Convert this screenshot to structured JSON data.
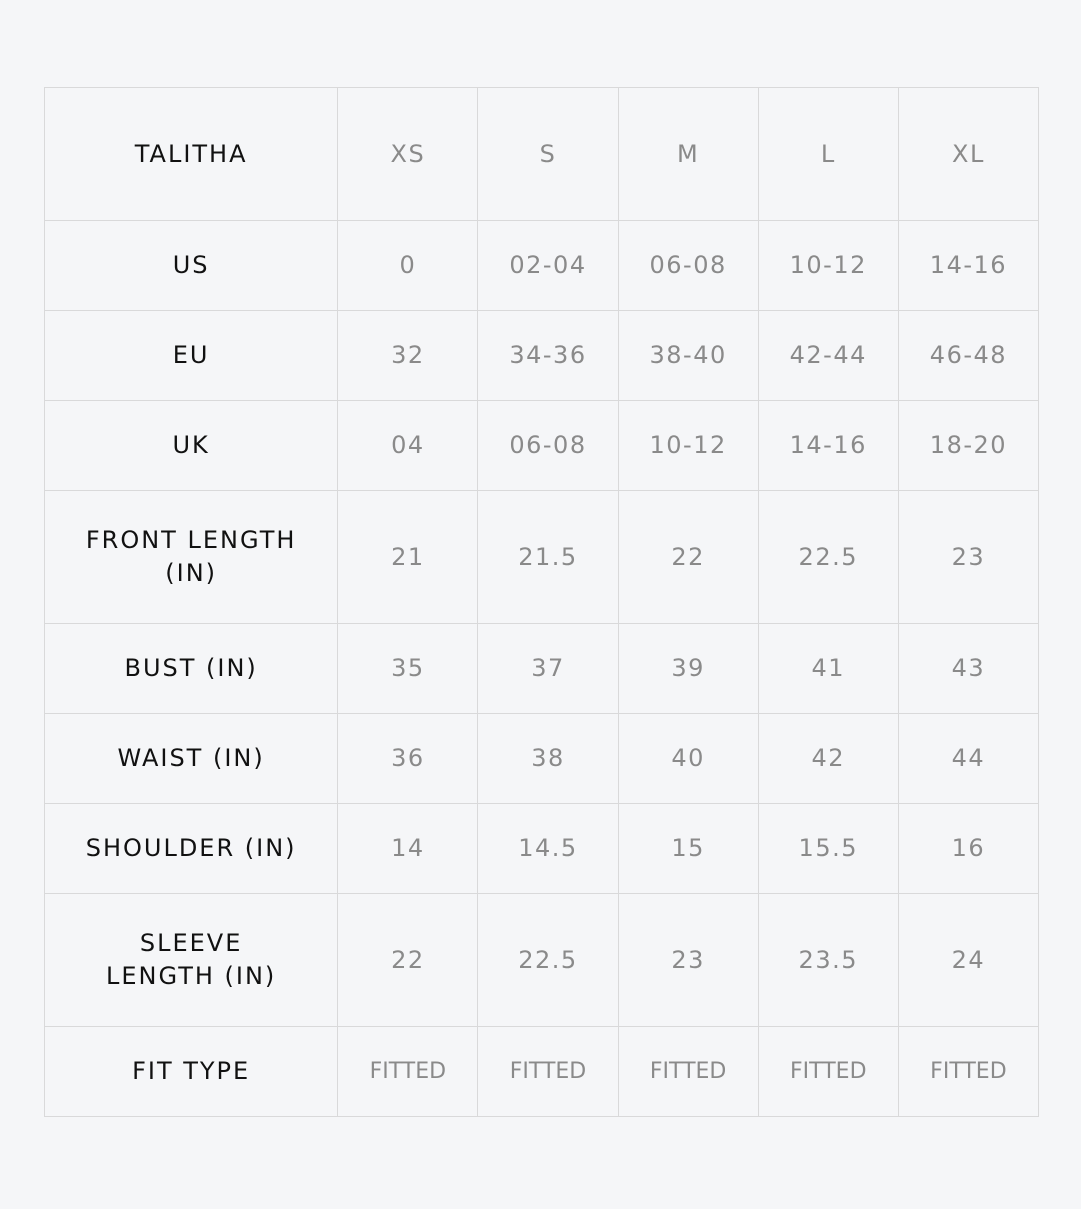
{
  "size_chart": {
    "title": "TALITHA",
    "sizes": [
      "XS",
      "S",
      "M",
      "L",
      "XL"
    ],
    "rows": [
      {
        "label": "US",
        "values": [
          "0",
          "02-04",
          "06-08",
          "10-12",
          "14-16"
        ]
      },
      {
        "label": "EU",
        "values": [
          "32",
          "34-36",
          "38-40",
          "42-44",
          "46-48"
        ]
      },
      {
        "label": "UK",
        "values": [
          "04",
          "06-08",
          "10-12",
          "14-16",
          "18-20"
        ]
      },
      {
        "label": "FRONT LENGTH (IN)",
        "values": [
          "21",
          "21.5",
          "22",
          "22.5",
          "23"
        ]
      },
      {
        "label": "BUST (IN)",
        "values": [
          "35",
          "37",
          "39",
          "41",
          "43"
        ]
      },
      {
        "label": "WAIST (IN)",
        "values": [
          "36",
          "38",
          "40",
          "42",
          "44"
        ]
      },
      {
        "label": "SHOULDER (IN)",
        "values": [
          "14",
          "14.5",
          "15",
          "15.5",
          "16"
        ]
      },
      {
        "label": "SLEEVE LENGTH (IN)",
        "values": [
          "22",
          "22.5",
          "23",
          "23.5",
          "24"
        ]
      },
      {
        "label": "FIT TYPE",
        "values": [
          "FITTED",
          "FITTED",
          "FITTED",
          "FITTED",
          "FITTED"
        ]
      }
    ]
  },
  "colors": {
    "background": "#f5f6f8",
    "border": "#d9d9da",
    "label": "#111111",
    "value": "#8a8a8a"
  }
}
